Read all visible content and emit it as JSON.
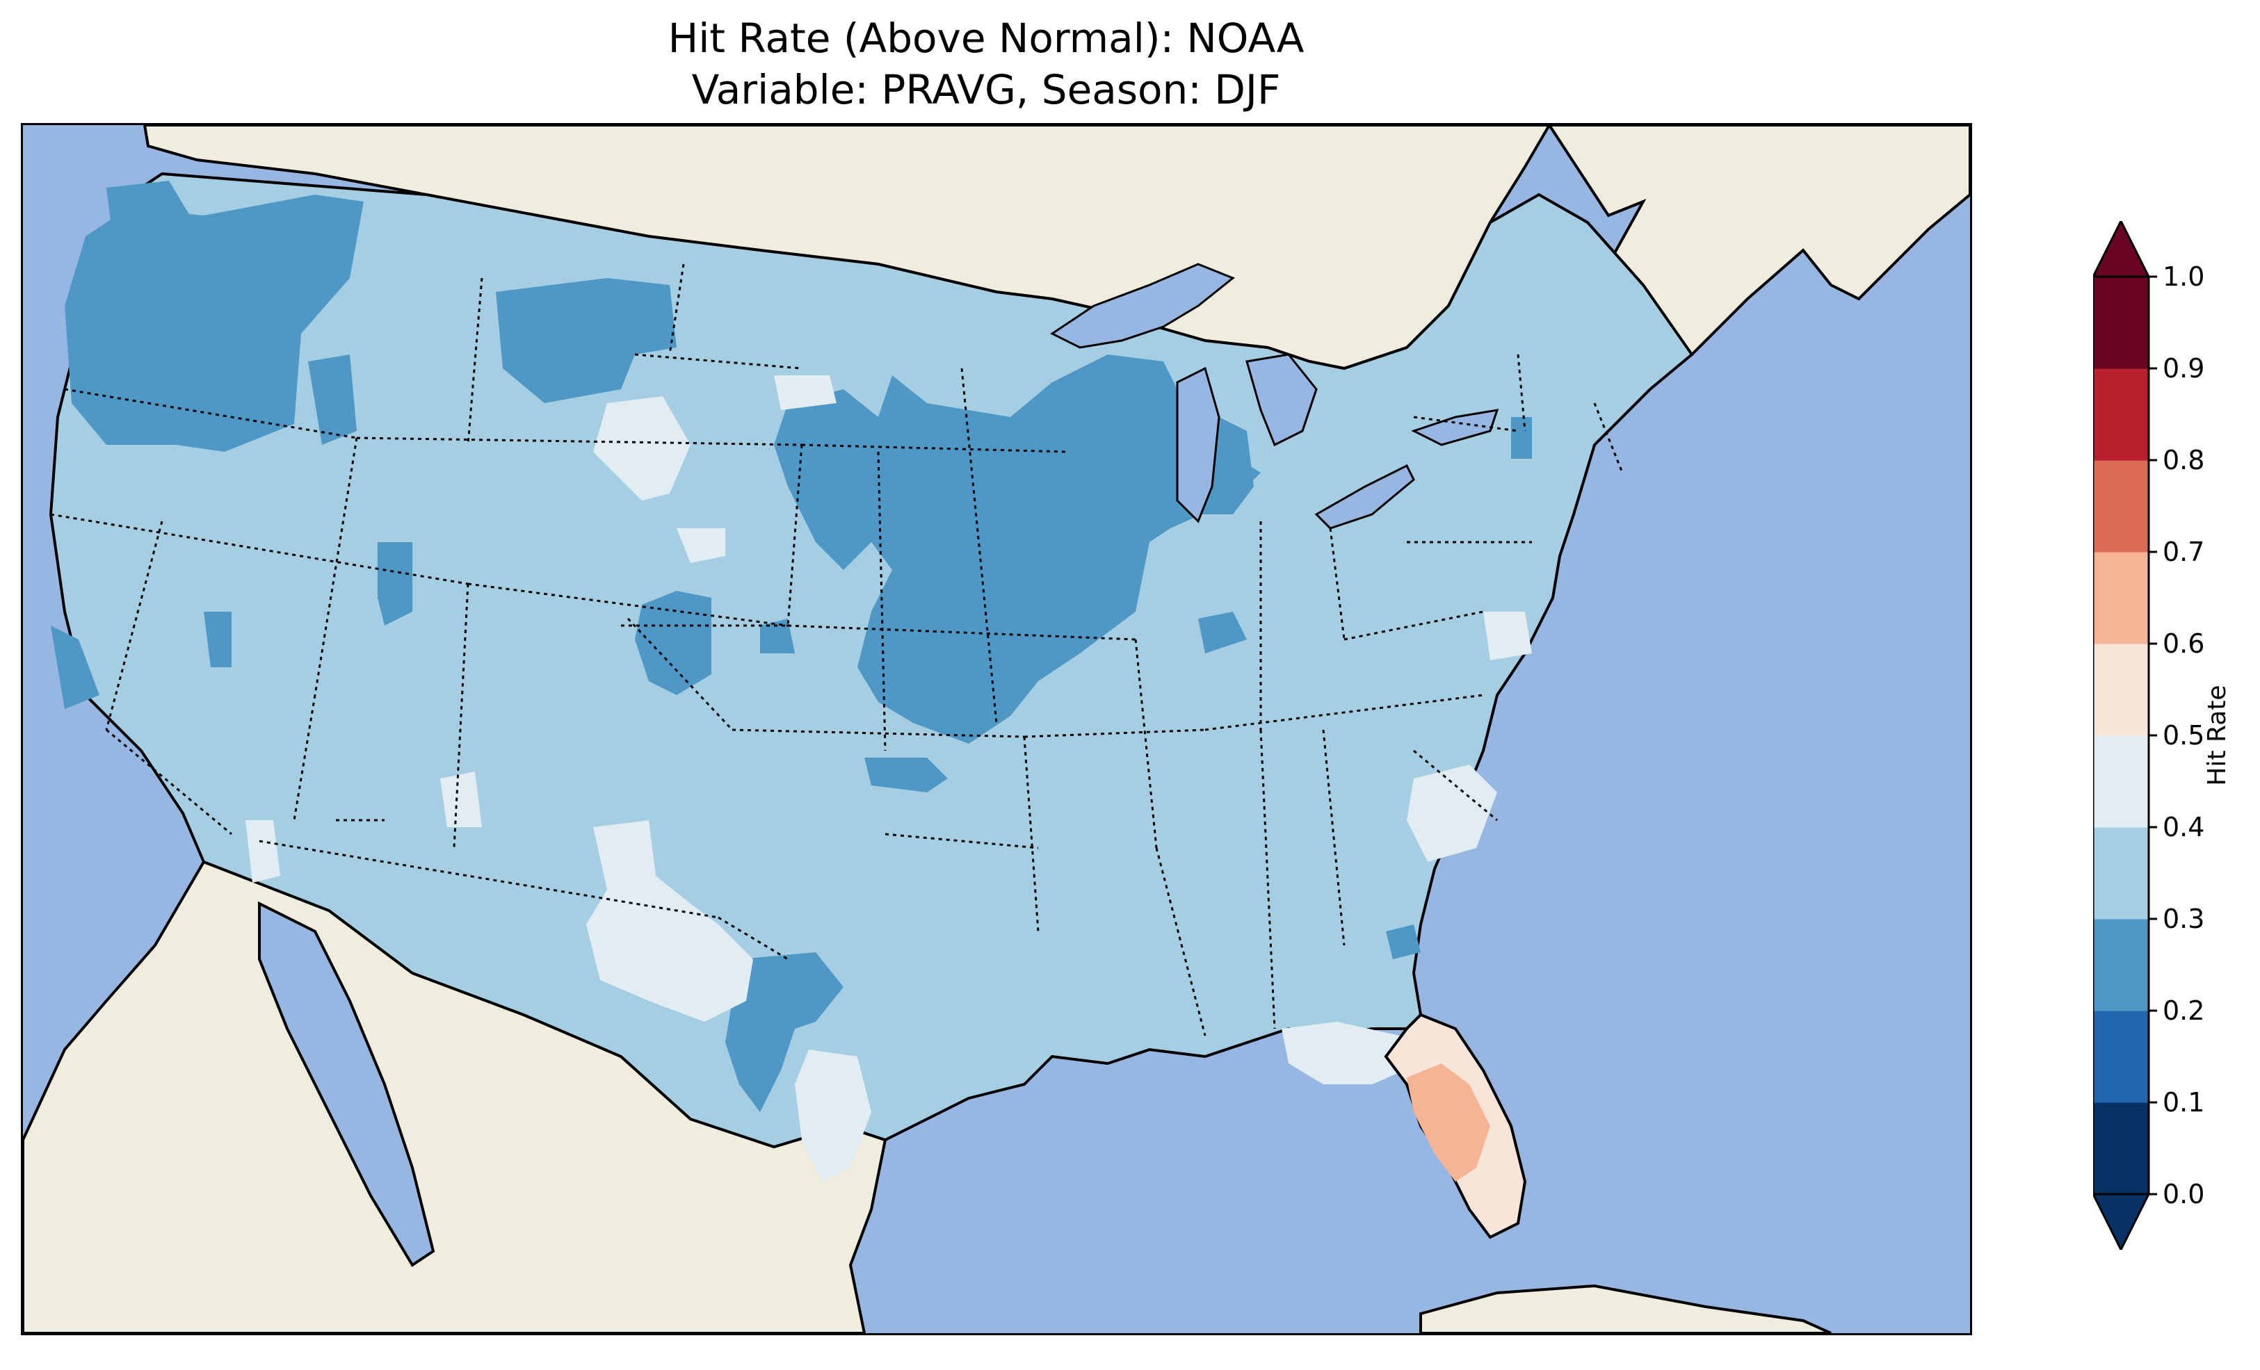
{
  "figure": {
    "title_line1": "Hit Rate (Above Normal): NOAA",
    "title_line2": "Variable: PRAVG, Season: DJF"
  },
  "map": {
    "ocean_color": "#97b6e1",
    "land_color": "#efedde",
    "regions": [
      {
        "name": "baseline",
        "hit_rate_bin": "0.3-0.4",
        "color": "#a6cee3"
      },
      {
        "name": "pacific-northwest",
        "hit_rate_bin": "0.2-0.3",
        "color": "#4f98c6"
      },
      {
        "name": "upper-midwest",
        "hit_rate_bin": "0.2-0.3",
        "color": "#4f98c6"
      },
      {
        "name": "colorado",
        "hit_rate_bin": "0.2-0.3",
        "color": "#4f98c6"
      },
      {
        "name": "south-texas",
        "hit_rate_bin": "0.2-0.3",
        "color": "#4f98c6"
      },
      {
        "name": "new-mexico-west-texas",
        "hit_rate_bin": "0.4-0.5",
        "color": "#e1ecf3"
      },
      {
        "name": "florida-north",
        "hit_rate_bin": "0.6-0.7",
        "color": "#f5b595"
      },
      {
        "name": "florida-south",
        "hit_rate_bin": "0.5-0.6",
        "color": "#f9e4d9"
      }
    ]
  },
  "colorbar": {
    "label": "Hit Rate",
    "ticks": [
      "0.0",
      "0.1",
      "0.2",
      "0.3",
      "0.4",
      "0.5",
      "0.6",
      "0.7",
      "0.8",
      "0.9",
      "1.0"
    ],
    "colors": [
      "#073163",
      "#2366ad",
      "#4f98c6",
      "#a6cee3",
      "#e1ecf3",
      "#f9e4d9",
      "#f5b595",
      "#db6b55",
      "#b7202c",
      "#6a0522"
    ]
  }
}
